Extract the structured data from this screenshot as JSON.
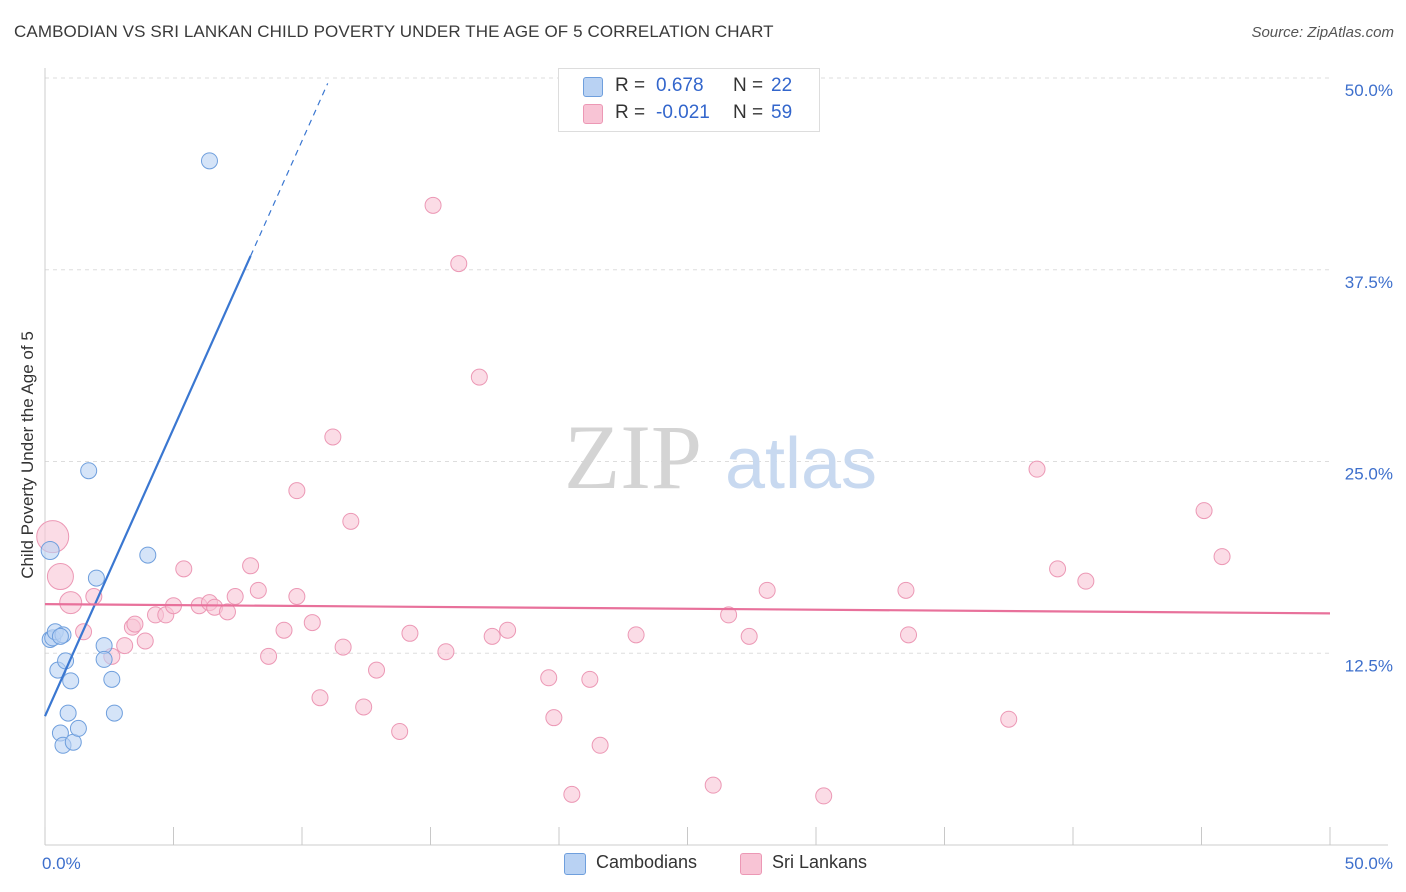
{
  "title": "CAMBODIAN VS SRI LANKAN CHILD POVERTY UNDER THE AGE OF 5 CORRELATION CHART",
  "source": "Source: ZipAtlas.com",
  "watermark": {
    "zip": "ZIP",
    "atlas": "atlas"
  },
  "colors": {
    "blue": "#3a77d1",
    "blue_fill": "#b9d2f3",
    "blue_stroke": "#6f9fdd",
    "pink": "#e8719b",
    "pink_fill": "#f8c4d5",
    "pink_stroke": "#ec98b5",
    "tick_text": "#3d6fcc",
    "grid": "#dddddd"
  },
  "legend_top": [
    {
      "r_label": "R =",
      "r_value": "0.678",
      "n_label": "N =",
      "n_value": "22"
    },
    {
      "r_label": "R =",
      "r_value": "-0.021",
      "n_label": "N =",
      "n_value": "59"
    }
  ],
  "legend_bottom": [
    "Cambodians",
    "Sri Lankans"
  ],
  "chart_data": {
    "type": "scatter",
    "title": "CAMBODIAN VS SRI LANKAN CHILD POVERTY UNDER THE AGE OF 5 CORRELATION CHART",
    "xlabel": "",
    "ylabel": "Child Poverty Under the Age of 5",
    "xlim": [
      0,
      50
    ],
    "ylim": [
      0,
      50
    ],
    "x_tick_labels": [
      "0.0%",
      "50.0%"
    ],
    "y_tick_labels": [
      "12.5%",
      "25.0%",
      "37.5%",
      "50.0%"
    ],
    "y_ticks": [
      12.5,
      25.0,
      37.5,
      50.0
    ],
    "grid": true,
    "series": [
      {
        "name": "Cambodians",
        "R": 0.678,
        "N": 22,
        "trend": {
          "x0": 0.0,
          "y0": 8.4,
          "x1": 8.0,
          "y1": 38.4,
          "dash_to_x": 11.0
        },
        "points": [
          [
            0.2,
            19.2,
            9
          ],
          [
            0.2,
            13.4,
            8
          ],
          [
            0.3,
            13.5,
            8
          ],
          [
            0.4,
            13.9,
            8
          ],
          [
            0.5,
            11.4,
            8
          ],
          [
            0.6,
            7.3,
            8
          ],
          [
            0.7,
            6.5,
            8
          ],
          [
            0.7,
            13.7,
            8
          ],
          [
            0.8,
            12.0,
            8
          ],
          [
            0.9,
            8.6,
            8
          ],
          [
            1.0,
            10.7,
            8
          ],
          [
            1.1,
            6.7,
            8
          ],
          [
            1.3,
            7.6,
            8
          ],
          [
            1.7,
            24.4,
            8
          ],
          [
            2.0,
            17.4,
            8
          ],
          [
            2.3,
            13.0,
            8
          ],
          [
            2.3,
            12.1,
            8
          ],
          [
            2.6,
            10.8,
            8
          ],
          [
            2.7,
            8.6,
            8
          ],
          [
            4.0,
            18.9,
            8
          ],
          [
            6.4,
            44.6,
            8
          ],
          [
            0.6,
            13.6,
            8
          ]
        ]
      },
      {
        "name": "Sri Lankans",
        "R": -0.021,
        "N": 59,
        "trend": {
          "x0": 0.0,
          "y0": 15.7,
          "x1": 50.0,
          "y1": 15.1
        },
        "points": [
          [
            0.3,
            20.1,
            16
          ],
          [
            0.6,
            17.5,
            13
          ],
          [
            1.0,
            15.8,
            11
          ],
          [
            1.5,
            13.9,
            8
          ],
          [
            1.9,
            16.2,
            8
          ],
          [
            2.6,
            12.3,
            8
          ],
          [
            3.1,
            13.0,
            8
          ],
          [
            3.4,
            14.2,
            8
          ],
          [
            3.5,
            14.4,
            8
          ],
          [
            3.9,
            13.3,
            8
          ],
          [
            4.3,
            15.0,
            8
          ],
          [
            4.7,
            15.0,
            8
          ],
          [
            5.0,
            15.6,
            8
          ],
          [
            5.4,
            18.0,
            8
          ],
          [
            6.0,
            15.6,
            8
          ],
          [
            6.4,
            15.8,
            8
          ],
          [
            6.6,
            15.5,
            8
          ],
          [
            7.1,
            15.2,
            8
          ],
          [
            7.4,
            16.2,
            8
          ],
          [
            8.0,
            18.2,
            8
          ],
          [
            8.3,
            16.6,
            8
          ],
          [
            8.7,
            12.3,
            8
          ],
          [
            9.3,
            14.0,
            8
          ],
          [
            9.8,
            16.2,
            8
          ],
          [
            9.8,
            23.1,
            8
          ],
          [
            10.4,
            14.5,
            8
          ],
          [
            10.7,
            9.6,
            8
          ],
          [
            11.2,
            26.6,
            8
          ],
          [
            11.6,
            12.9,
            8
          ],
          [
            11.9,
            21.1,
            8
          ],
          [
            12.4,
            9.0,
            8
          ],
          [
            12.9,
            11.4,
            8
          ],
          [
            13.8,
            7.4,
            8
          ],
          [
            14.2,
            13.8,
            8
          ],
          [
            15.1,
            41.7,
            8
          ],
          [
            15.6,
            12.6,
            8
          ],
          [
            16.1,
            37.9,
            8
          ],
          [
            16.9,
            30.5,
            8
          ],
          [
            17.4,
            13.6,
            8
          ],
          [
            18.0,
            14.0,
            8
          ],
          [
            19.6,
            10.9,
            8
          ],
          [
            19.8,
            8.3,
            8
          ],
          [
            20.5,
            3.3,
            8
          ],
          [
            21.2,
            10.8,
            8
          ],
          [
            21.6,
            6.5,
            8
          ],
          [
            23.0,
            13.7,
            8
          ],
          [
            26.0,
            3.9,
            8
          ],
          [
            26.6,
            15.0,
            8
          ],
          [
            27.4,
            13.6,
            8
          ],
          [
            28.1,
            16.6,
            8
          ],
          [
            30.3,
            3.2,
            8
          ],
          [
            33.5,
            16.6,
            8
          ],
          [
            33.6,
            13.7,
            8
          ],
          [
            37.5,
            8.2,
            8
          ],
          [
            38.6,
            24.5,
            8
          ],
          [
            39.4,
            18.0,
            8
          ],
          [
            40.5,
            17.2,
            8
          ],
          [
            45.1,
            21.8,
            8
          ],
          [
            45.8,
            18.8,
            8
          ]
        ]
      }
    ]
  }
}
